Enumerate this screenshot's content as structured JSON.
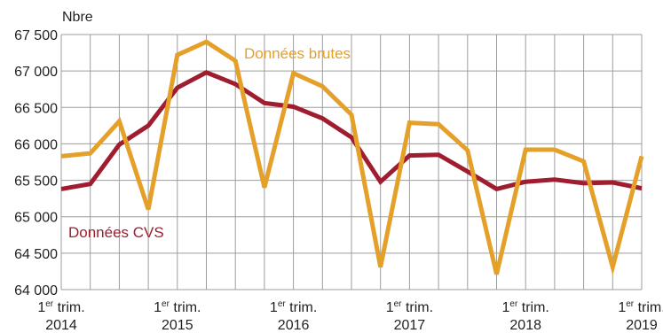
{
  "chart_data": {
    "type": "line",
    "ylabel": "Nbre",
    "ylim": [
      64000,
      67500
    ],
    "yticks": [
      64000,
      64500,
      65000,
      65500,
      66000,
      66500,
      67000,
      67500
    ],
    "ytick_labels": [
      "64 000",
      "64 500",
      "65 000",
      "65 500",
      "66 000",
      "66 500",
      "67 000",
      "67 500"
    ],
    "x": [
      "2014-Q1",
      "2014-Q2",
      "2014-Q3",
      "2014-Q4",
      "2015-Q1",
      "2015-Q2",
      "2015-Q3",
      "2015-Q4",
      "2016-Q1",
      "2016-Q2",
      "2016-Q3",
      "2016-Q4",
      "2017-Q1",
      "2017-Q2",
      "2017-Q3",
      "2017-Q4",
      "2018-Q1",
      "2018-Q2",
      "2018-Q3",
      "2018-Q4",
      "2019-Q1"
    ],
    "xtick_labels": [
      {
        "sup": "er",
        "line1_rest": " trim.",
        "line1_pre": "1",
        "line2": "2014"
      },
      {
        "sup": "er",
        "line1_rest": " trim.",
        "line1_pre": "1",
        "line2": "2015"
      },
      {
        "sup": "er",
        "line1_rest": " trim.",
        "line1_pre": "1",
        "line2": "2016"
      },
      {
        "sup": "er",
        "line1_rest": " trim.",
        "line1_pre": "1",
        "line2": "2017"
      },
      {
        "sup": "er",
        "line1_rest": " trim.",
        "line1_pre": "1",
        "line2": "2018"
      },
      {
        "sup": "er",
        "line1_rest": " trim.",
        "line1_pre": "1",
        "line2": "2019"
      }
    ],
    "series": [
      {
        "name": "Données brutes",
        "color": "#e5a02a",
        "values": [
          65830,
          65870,
          66310,
          65100,
          67220,
          67400,
          67140,
          65400,
          66970,
          66790,
          66400,
          64310,
          66290,
          66270,
          65910,
          64210,
          65920,
          65920,
          65760,
          64310,
          65830
        ]
      },
      {
        "name": "Données CVS",
        "color": "#9f1d2f",
        "values": [
          65380,
          65450,
          65990,
          66250,
          66770,
          66980,
          66820,
          66560,
          66510,
          66350,
          66090,
          65480,
          65840,
          65850,
          65620,
          65380,
          65480,
          65510,
          65460,
          65470,
          65390
        ]
      }
    ],
    "grid": true
  }
}
